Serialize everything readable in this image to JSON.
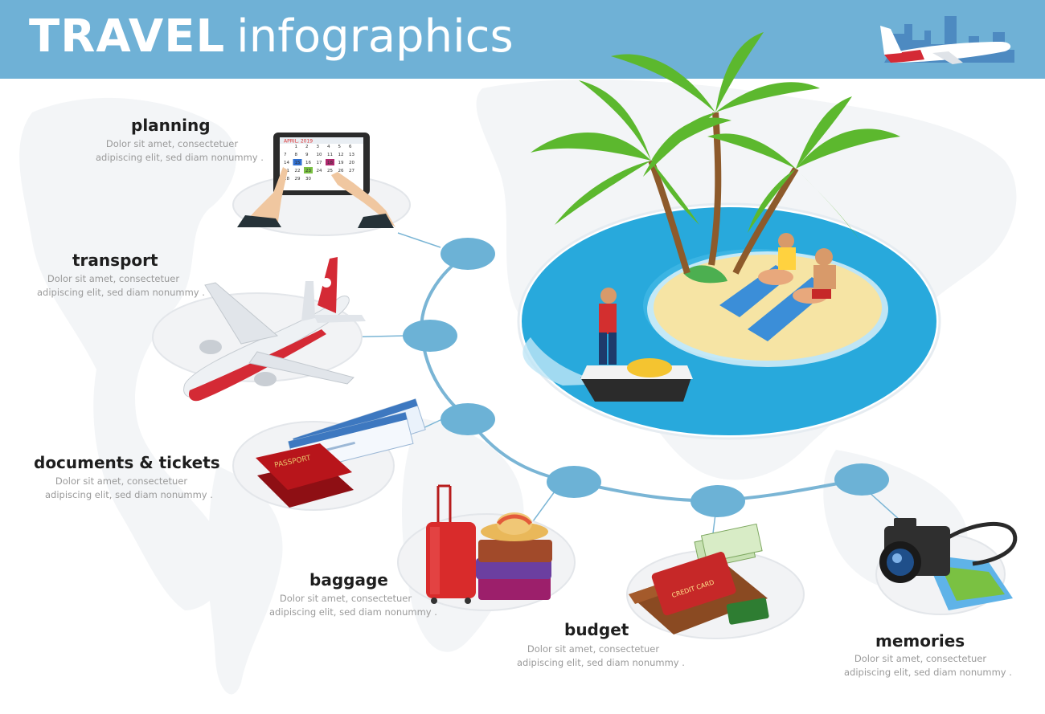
{
  "header": {
    "title_bold": "TRAVEL",
    "title_light": "infographics"
  },
  "steps": [
    {
      "label": "planning",
      "desc_line1": "Dolor sit amet, consectetuer",
      "desc_line2": "adipiscing elit, sed diam nonummy ."
    },
    {
      "label": "transport",
      "desc_line1": "Dolor sit amet, consectetuer",
      "desc_line2": "adipiscing elit, sed diam nonummy ."
    },
    {
      "label": "documents & tickets",
      "desc_line1": "Dolor sit amet, consectetuer",
      "desc_line2": "adipiscing elit, sed diam nonummy ."
    },
    {
      "label": "baggage",
      "desc_line1": "Dolor sit amet, consectetuer",
      "desc_line2": "adipiscing elit, sed diam nonummy ."
    },
    {
      "label": "budget",
      "desc_line1": "Dolor sit amet, consectetuer",
      "desc_line2": "adipiscing elit, sed diam nonummy ."
    },
    {
      "label": "memories",
      "desc_line1": "Dolor sit amet, consectetuer",
      "desc_line2": "adipiscing elit, sed diam nonummy ."
    }
  ],
  "tablet": {
    "month": "APRIL, 2019",
    "day_numbers": [
      "1",
      "2",
      "3",
      "4",
      "5",
      "6",
      "7",
      "8",
      "9",
      "10",
      "11",
      "12",
      "13",
      "14",
      "15",
      "16",
      "17",
      "18",
      "19",
      "20",
      "21",
      "22",
      "23",
      "24",
      "25",
      "26",
      "27",
      "28",
      "29",
      "30"
    ]
  },
  "passport": {
    "text": "PASSPORT"
  },
  "wallet_card": {
    "text": "CREDIT CARD"
  },
  "colors": {
    "header": "#6fb1d6",
    "node_fill": "#6cb2d6",
    "connector": "#7ab5d5",
    "sea": "#28a9dc",
    "sand": "#f6e4a4",
    "palm_green": "#5cb82e",
    "airplane_red": "#d42a35",
    "passport_red": "#b8151b"
  },
  "icons": [
    "calendar-tablet-icon",
    "airplane-icon",
    "passport-tickets-icon",
    "luggage-icon",
    "wallet-icon",
    "camera-icon",
    "island-icon",
    "header-airplane-icon"
  ]
}
